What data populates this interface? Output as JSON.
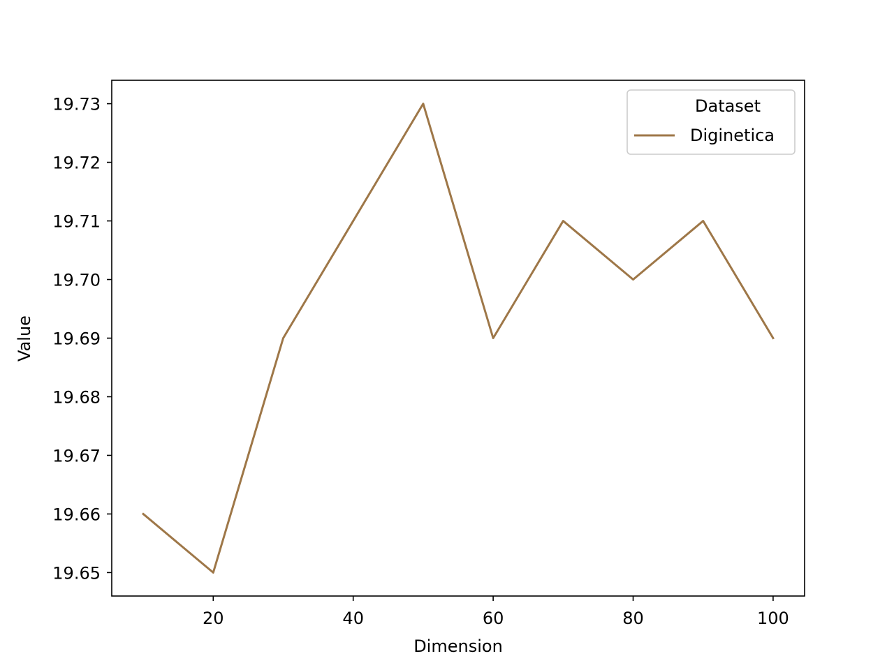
{
  "chart_data": {
    "type": "line",
    "title": "",
    "xlabel": "Dimension",
    "ylabel": "Value",
    "xlim": [
      5.5,
      104.5
    ],
    "ylim": [
      19.646,
      19.734
    ],
    "x_ticks": [
      20,
      40,
      60,
      80,
      100
    ],
    "y_ticks": [
      19.65,
      19.66,
      19.67,
      19.68,
      19.69,
      19.7,
      19.71,
      19.72,
      19.73
    ],
    "x_tick_labels": [
      "20",
      "40",
      "60",
      "80",
      "100"
    ],
    "y_tick_labels": [
      "19.65",
      "19.66",
      "19.67",
      "19.68",
      "19.69",
      "19.70",
      "19.71",
      "19.72",
      "19.73"
    ],
    "grid": false,
    "legend": {
      "title": "Dataset",
      "placement": "top-right"
    },
    "series": [
      {
        "name": "Diginetica",
        "color": "#9e7748",
        "x": [
          10,
          20,
          30,
          40,
          50,
          60,
          70,
          80,
          90,
          100
        ],
        "y": [
          19.66,
          19.65,
          19.69,
          19.71,
          19.73,
          19.69,
          19.71,
          19.7,
          19.71,
          19.69
        ]
      }
    ]
  }
}
